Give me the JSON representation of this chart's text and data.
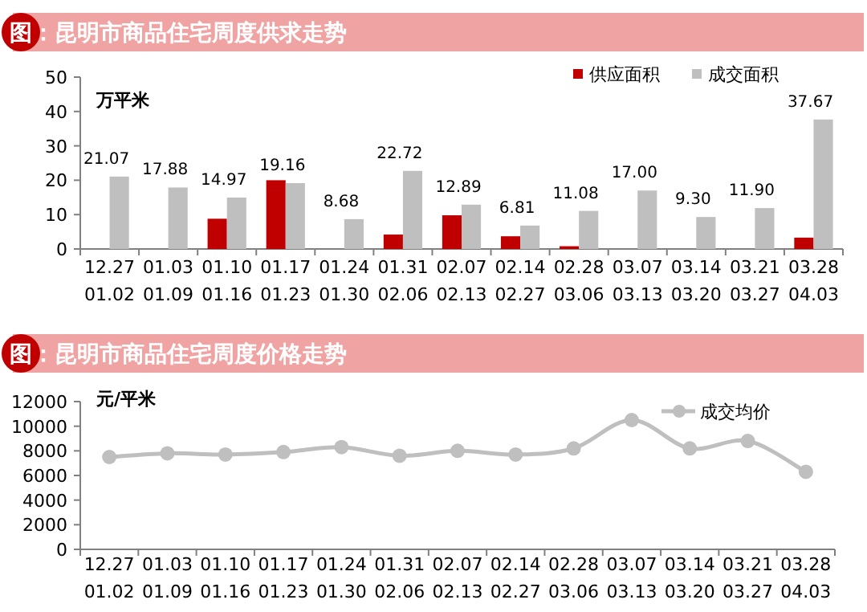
{
  "chart_data": [
    {
      "type": "bar",
      "title": "图：昆明市商品住宅周度供求走势",
      "ylabel": "万平米",
      "categories": [
        "12.27\n01.02",
        "01.03\n01.09",
        "01.10\n01.16",
        "01.17\n01.23",
        "01.24\n01.30",
        "01.31\n02.06",
        "02.07\n02.13",
        "02.14\n02.27",
        "02.28\n03.06",
        "03.07\n03.13",
        "03.14\n03.20",
        "03.21\n03.27",
        "03.28\n04.03"
      ],
      "series": [
        {
          "name": "供应面积",
          "color": "#c00000",
          "values": [
            null,
            null,
            8.8,
            20,
            null,
            4.2,
            9.8,
            3.7,
            0.8,
            null,
            null,
            null,
            3.3
          ]
        },
        {
          "name": "成交面积",
          "color": "#bfbfbf",
          "values": [
            21.07,
            17.88,
            14.97,
            19.16,
            8.68,
            22.72,
            12.89,
            6.81,
            11.08,
            17.0,
            9.3,
            11.9,
            37.67
          ],
          "value_labels": [
            "21.07",
            "17.88",
            "14.97",
            "19.16",
            "8.68",
            "22.72",
            "12.89",
            "6.81",
            "11.08",
            "17.00",
            "9.30",
            "11.90",
            "37.67"
          ]
        }
      ],
      "ylim": [
        0,
        50
      ],
      "yticks": [
        0,
        10,
        20,
        30,
        40,
        50
      ],
      "grid": false,
      "legend": "top right"
    },
    {
      "type": "line",
      "title": "图：昆明市商品住宅周度价格走势",
      "ylabel": "元/平米",
      "categories": [
        "12.27\n01.02",
        "01.03\n01.09",
        "01.10\n01.16",
        "01.17\n01.23",
        "01.24\n01.30",
        "01.31\n02.06",
        "02.07\n02.13",
        "02.14\n02.27",
        "02.28\n03.06",
        "03.07\n03.13",
        "03.14\n03.20",
        "03.21\n03.27",
        "03.28\n04.03"
      ],
      "series": [
        {
          "name": "成交均价",
          "color": "#bfbfbf",
          "values": [
            7500,
            7800,
            7700,
            7900,
            8300,
            7600,
            8000,
            7700,
            8200,
            10500,
            8200,
            8800,
            6300
          ]
        }
      ],
      "ylim": [
        0,
        12000
      ],
      "yticks": [
        0,
        2000,
        4000,
        6000,
        8000,
        10000,
        12000
      ],
      "grid": false,
      "legend": "top right",
      "marker": "circle"
    }
  ]
}
